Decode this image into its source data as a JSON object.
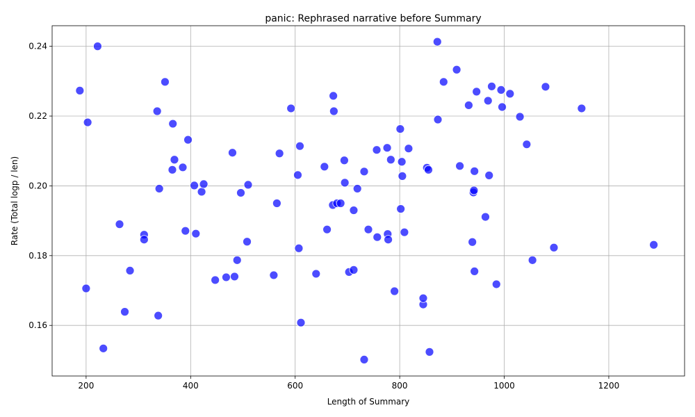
{
  "chart_data": {
    "type": "scatter",
    "title": "panic: Rephrased narrative before Summary",
    "xlabel": "Length of Summary",
    "ylabel": "Rate (Total logp / len)",
    "xlim": [
      135,
      1345
    ],
    "ylim": [
      0.1455,
      0.2459
    ],
    "xticks": [
      200,
      400,
      600,
      800,
      1000,
      1200
    ],
    "yticks": [
      0.16,
      0.18,
      0.2,
      0.22,
      0.24
    ],
    "ytick_labels": [
      "0.16",
      "0.18",
      "0.20",
      "0.22",
      "0.24"
    ],
    "grid": true,
    "color": "#0000ff",
    "points": [
      [
        188,
        0.2273
      ],
      [
        222,
        0.24
      ],
      [
        203,
        0.2182
      ],
      [
        200,
        0.1706
      ],
      [
        233,
        0.1534
      ],
      [
        264,
        0.189
      ],
      [
        274,
        0.1639
      ],
      [
        284,
        0.1757
      ],
      [
        311,
        0.186
      ],
      [
        311,
        0.1846
      ],
      [
        336,
        0.2214
      ],
      [
        338,
        0.1628
      ],
      [
        340,
        0.1992
      ],
      [
        351,
        0.2298
      ],
      [
        365,
        0.2046
      ],
      [
        366,
        0.2178
      ],
      [
        369,
        0.2075
      ],
      [
        385,
        0.2053
      ],
      [
        390,
        0.1871
      ],
      [
        395,
        0.2132
      ],
      [
        407,
        0.2001
      ],
      [
        410,
        0.1863
      ],
      [
        421,
        0.1983
      ],
      [
        425,
        0.2005
      ],
      [
        447,
        0.173
      ],
      [
        468,
        0.1738
      ],
      [
        480,
        0.2095
      ],
      [
        484,
        0.174
      ],
      [
        489,
        0.1787
      ],
      [
        496,
        0.198
      ],
      [
        508,
        0.184
      ],
      [
        510,
        0.2003
      ],
      [
        559,
        0.1744
      ],
      [
        565,
        0.195
      ],
      [
        570,
        0.2093
      ],
      [
        592,
        0.2222
      ],
      [
        605,
        0.2031
      ],
      [
        607,
        0.1821
      ],
      [
        609,
        0.2114
      ],
      [
        611,
        0.1608
      ],
      [
        640,
        0.1748
      ],
      [
        656,
        0.2055
      ],
      [
        661,
        0.1875
      ],
      [
        672,
        0.1945
      ],
      [
        673,
        0.2258
      ],
      [
        674,
        0.2214
      ],
      [
        680,
        0.195
      ],
      [
        687,
        0.195
      ],
      [
        694,
        0.2073
      ],
      [
        695,
        0.2009
      ],
      [
        703,
        0.1753
      ],
      [
        712,
        0.193
      ],
      [
        712,
        0.1759
      ],
      [
        719,
        0.1992
      ],
      [
        732,
        0.2041
      ],
      [
        732,
        0.1502
      ],
      [
        740,
        0.1875
      ],
      [
        756,
        0.2103
      ],
      [
        757,
        0.1853
      ],
      [
        776,
        0.2109
      ],
      [
        777,
        0.1862
      ],
      [
        778,
        0.1846
      ],
      [
        783,
        0.2075
      ],
      [
        790,
        0.1698
      ],
      [
        801,
        0.2163
      ],
      [
        802,
        0.1934
      ],
      [
        804,
        0.2069
      ],
      [
        805,
        0.2028
      ],
      [
        809,
        0.1867
      ],
      [
        817,
        0.2107
      ],
      [
        845,
        0.166
      ],
      [
        845,
        0.1678
      ],
      [
        852,
        0.2052
      ],
      [
        855,
        0.2046
      ],
      [
        857,
        0.1524
      ],
      [
        872,
        0.2413
      ],
      [
        873,
        0.219
      ],
      [
        884,
        0.2298
      ],
      [
        909,
        0.2333
      ],
      [
        915,
        0.2057
      ],
      [
        932,
        0.2231
      ],
      [
        939,
        0.1839
      ],
      [
        941,
        0.1981
      ],
      [
        942,
        0.1987
      ],
      [
        943,
        0.1755
      ],
      [
        943,
        0.2042
      ],
      [
        947,
        0.227
      ],
      [
        964,
        0.1911
      ],
      [
        969,
        0.2244
      ],
      [
        971,
        0.203
      ],
      [
        976,
        0.2285
      ],
      [
        985,
        0.1718
      ],
      [
        994,
        0.2275
      ],
      [
        996,
        0.2226
      ],
      [
        1011,
        0.2264
      ],
      [
        1030,
        0.2198
      ],
      [
        1043,
        0.2119
      ],
      [
        1054,
        0.1787
      ],
      [
        1079,
        0.2284
      ],
      [
        1095,
        0.1823
      ],
      [
        1148,
        0.2222
      ],
      [
        1286,
        0.1831
      ]
    ]
  }
}
